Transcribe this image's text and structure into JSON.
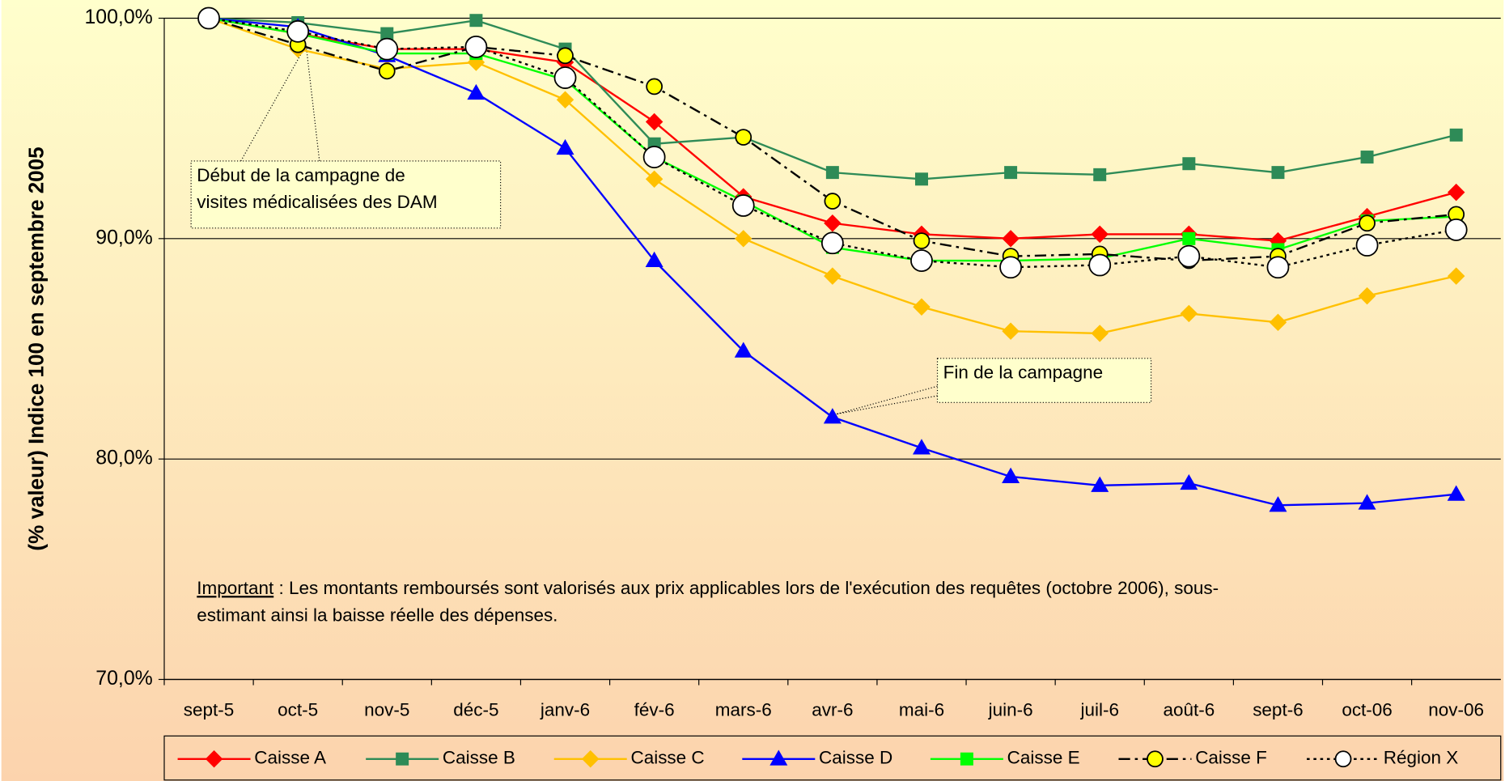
{
  "chart_data": {
    "type": "line",
    "ylabel": "(% valeur) Indice 100 en septembre 2005",
    "categories": [
      "sept-5",
      "oct-5",
      "nov-5",
      "déc-5",
      "janv-6",
      "fév-6",
      "mars-6",
      "avr-6",
      "mai-6",
      "juin-6",
      "juil-6",
      "août-6",
      "sept-6",
      "oct-06",
      "nov-06"
    ],
    "ylim": [
      70,
      100
    ],
    "yticks": [
      {
        "value": 70,
        "label": "70,0%"
      },
      {
        "value": 80,
        "label": "80,0%"
      },
      {
        "value": 90,
        "label": "90,0%"
      },
      {
        "value": 100,
        "label": "100,0%"
      }
    ],
    "grid": true,
    "legend": "bottom",
    "series": [
      {
        "name": "Caisse A",
        "color": "#ff0000",
        "marker": "diamond",
        "marker_fill": "#ff0000",
        "dash": "solid",
        "values": [
          100,
          99.3,
          98.6,
          98.6,
          98.0,
          95.3,
          91.9,
          90.7,
          90.2,
          90.0,
          90.2,
          90.2,
          89.9,
          91.0,
          92.1
        ]
      },
      {
        "name": "Caisse B",
        "color": "#2e8b57",
        "marker": "square",
        "marker_fill": "#2e8b57",
        "dash": "solid",
        "values": [
          100,
          99.8,
          99.3,
          99.9,
          98.6,
          94.3,
          94.6,
          93.0,
          92.7,
          93.0,
          92.9,
          93.4,
          93.0,
          93.7,
          94.7
        ]
      },
      {
        "name": "Caisse C",
        "color": "#ffc000",
        "marker": "diamond",
        "marker_fill": "#ffc000",
        "dash": "solid",
        "values": [
          100,
          98.6,
          97.7,
          98.0,
          96.3,
          92.7,
          90.0,
          88.3,
          86.9,
          85.8,
          85.7,
          86.6,
          86.2,
          87.4,
          88.3
        ]
      },
      {
        "name": "Caisse D",
        "color": "#0000ff",
        "marker": "triangle",
        "marker_fill": "#0000ff",
        "dash": "solid",
        "values": [
          100,
          99.6,
          98.3,
          96.6,
          94.1,
          89.0,
          84.9,
          81.9,
          80.5,
          79.2,
          78.8,
          78.9,
          77.9,
          78.0,
          78.4
        ]
      },
      {
        "name": "Caisse E",
        "color": "#00ff00",
        "marker": "square",
        "marker_fill": "#00ff00",
        "dash": "solid",
        "values": [
          100,
          99.3,
          98.4,
          98.4,
          97.2,
          93.7,
          91.7,
          89.6,
          89.0,
          89.0,
          89.1,
          90.0,
          89.5,
          90.8,
          91.0
        ]
      },
      {
        "name": "Caisse F",
        "color": "#000000",
        "marker": "circle",
        "marker_fill": "#ffff00",
        "dash": "dashdot",
        "values": [
          100,
          98.8,
          97.6,
          98.7,
          98.3,
          96.9,
          94.6,
          91.7,
          89.9,
          89.2,
          89.3,
          89.0,
          89.2,
          90.7,
          91.1
        ]
      },
      {
        "name": "Région X",
        "color": "#000000",
        "marker": "bigcircle",
        "marker_fill": "#ffffff",
        "dash": "dotted",
        "values": [
          100,
          99.4,
          98.6,
          98.7,
          97.3,
          93.7,
          91.5,
          89.8,
          89.0,
          88.7,
          88.8,
          89.2,
          88.7,
          89.7,
          90.4
        ]
      }
    ],
    "annotations": [
      {
        "lines": [
          "Début de la campagne de",
          "visites médicalisées des DAM"
        ]
      },
      {
        "lines": [
          "Fin de la campagne"
        ]
      }
    ],
    "note": {
      "label": "Important",
      "lines": [
        " : Les montants remboursés sont valorisés aux prix applicables lors de l'exécution des requêtes (octobre 2006), sous-",
        "estimant ainsi la baisse réelle des dépenses."
      ]
    }
  }
}
